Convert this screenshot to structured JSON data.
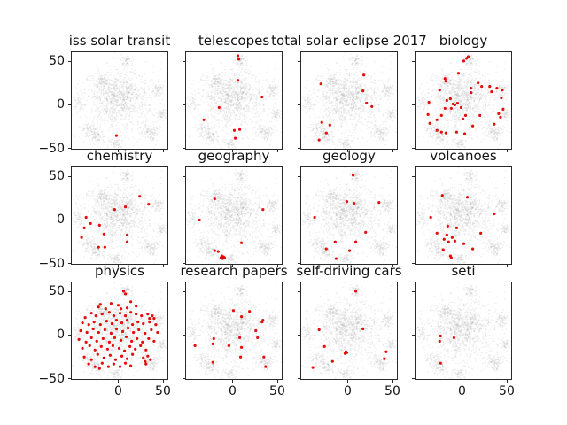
{
  "figure": {
    "background": "#ffffff"
  },
  "chart_data": {
    "type": "scatter",
    "description": "3x4 grid of subplots; each shows the same 2-D t-SNE embedding as a light gray point cloud with topic-matching documents highlighted in red",
    "axes": {
      "xlim": [
        -52,
        55
      ],
      "ylim": [
        -50,
        60
      ],
      "xticks": [
        0,
        50
      ],
      "xtick_labels": [
        "0",
        "50"
      ],
      "yticks": [
        50,
        0,
        -50
      ],
      "ytick_labels": [
        "50",
        "0",
        "−50"
      ],
      "grid": false,
      "tick_labels_left_column_only": true,
      "tick_labels_bottom_row_only": true
    },
    "colors": {
      "highlight": "#e50000",
      "cloud": "#999999",
      "spine": "#2a2a2a",
      "text": "#111111"
    },
    "background_cloud": {
      "seed": 1337,
      "point_alpha": 0.16,
      "point_radius": 0.8,
      "clusters": [
        {
          "cx": 0,
          "cy": 4,
          "sx": 20,
          "sy": 18,
          "n": 700
        },
        {
          "cx": 3,
          "cy": 10,
          "sx": 11,
          "sy": 10,
          "n": 300
        },
        {
          "cx": 9,
          "cy": 50,
          "sx": 3.5,
          "sy": 3,
          "n": 60
        },
        {
          "cx": -17,
          "cy": 27,
          "sx": 4.5,
          "sy": 4,
          "n": 90
        },
        {
          "cx": 45,
          "cy": 17,
          "sx": 4,
          "sy": 4,
          "n": 70
        },
        {
          "cx": 49,
          "cy": -11,
          "sx": 3.5,
          "sy": 3.5,
          "n": 55
        },
        {
          "cx": 37,
          "cy": -31,
          "sx": 5,
          "sy": 4.5,
          "n": 110
        },
        {
          "cx": -32,
          "cy": -28,
          "sx": 5,
          "sy": 4.5,
          "n": 90
        },
        {
          "cx": -3,
          "cy": -44,
          "sx": 4,
          "sy": 3.5,
          "n": 60
        },
        {
          "cx": -44,
          "cy": 3,
          "sx": 4,
          "sy": 5,
          "n": 50
        },
        {
          "cx": -24,
          "cy": -38,
          "sx": 4,
          "sy": 3.5,
          "n": 60
        },
        {
          "cx": 0,
          "cy": 0,
          "sx": 30,
          "sy": 26,
          "n": 260
        }
      ]
    },
    "subplots": [
      {
        "title": "iss solar transit",
        "red_points": [
          [
            -2,
            -35
          ]
        ]
      },
      {
        "title": "telescopes",
        "red_points": [
          [
            6,
            56
          ],
          [
            7,
            52
          ],
          [
            6,
            28
          ],
          [
            33,
            9
          ],
          [
            -15,
            -3
          ],
          [
            -32,
            -17
          ],
          [
            2,
            -29
          ],
          [
            8,
            -28
          ],
          [
            3,
            -38
          ]
        ]
      },
      {
        "title": "total solar eclipse 2017",
        "red_points": [
          [
            18,
            34
          ],
          [
            -30,
            24
          ],
          [
            17,
            16
          ],
          [
            21,
            2
          ],
          [
            27,
            -2
          ],
          [
            -29,
            -20
          ],
          [
            -20,
            -23
          ],
          [
            -24,
            -32
          ],
          [
            -32,
            -40
          ]
        ]
      },
      {
        "title": "biology",
        "red_points": [
          [
            5,
            53
          ],
          [
            7,
            55
          ],
          [
            2,
            50
          ],
          [
            -4,
            36
          ],
          [
            -19,
            30
          ],
          [
            -18,
            27
          ],
          [
            18,
            25
          ],
          [
            -25,
            17
          ],
          [
            10,
            19
          ],
          [
            10,
            14
          ],
          [
            22,
            21
          ],
          [
            31,
            21
          ],
          [
            39,
            19
          ],
          [
            45,
            17
          ],
          [
            33,
            15
          ],
          [
            44,
            8
          ],
          [
            -13,
            7
          ],
          [
            -17,
            5
          ],
          [
            -37,
            3
          ],
          [
            -10,
            1
          ],
          [
            -8,
            0
          ],
          [
            -5,
            2
          ],
          [
            -1,
            -3
          ],
          [
            -12,
            -4
          ],
          [
            -19,
            -4
          ],
          [
            -38,
            -11
          ],
          [
            -23,
            -12
          ],
          [
            -28,
            -17
          ],
          [
            4,
            -12
          ],
          [
            1,
            -16
          ],
          [
            20,
            -12
          ],
          [
            41,
            -10
          ],
          [
            43,
            -14
          ],
          [
            46,
            -5
          ],
          [
            -36,
            -21
          ],
          [
            12,
            -24
          ],
          [
            36,
            -22
          ],
          [
            -23,
            -31
          ],
          [
            -18,
            -32
          ],
          [
            -6,
            -31
          ],
          [
            3,
            -33
          ],
          [
            -28,
            -29
          ]
        ]
      },
      {
        "title": "chemistry",
        "red_points": [
          [
            24,
            27
          ],
          [
            34,
            18
          ],
          [
            -4,
            12
          ],
          [
            8,
            15
          ],
          [
            -36,
            3
          ],
          [
            -31,
            -4
          ],
          [
            -38,
            -9
          ],
          [
            -21,
            -6
          ],
          [
            -41,
            -20
          ],
          [
            -16,
            -16
          ],
          [
            10,
            -17
          ],
          [
            10,
            -25
          ],
          [
            -22,
            -31
          ],
          [
            -15,
            -31
          ]
        ]
      },
      {
        "title": "geography",
        "red_points": [
          [
            -20,
            24
          ],
          [
            34,
            12
          ],
          [
            -37,
            0
          ],
          [
            10,
            -26
          ],
          [
            -20,
            -35
          ],
          [
            -16,
            -36
          ],
          [
            -12,
            -41
          ],
          [
            -10,
            -42
          ],
          [
            -11,
            -44
          ],
          [
            -13,
            -43
          ],
          [
            -9,
            -43
          ]
        ]
      },
      {
        "title": "geology",
        "red_points": [
          [
            6,
            51
          ],
          [
            -1,
            21
          ],
          [
            7,
            19
          ],
          [
            35,
            20
          ],
          [
            -37,
            3
          ],
          [
            20,
            -14
          ],
          [
            9,
            -25
          ],
          [
            -14,
            -25
          ],
          [
            -24,
            -33
          ],
          [
            2,
            -35
          ],
          [
            -13,
            -44
          ]
        ]
      },
      {
        "title": "volcanoes",
        "red_points": [
          [
            -22,
            28
          ],
          [
            6,
            26
          ],
          [
            -35,
            3
          ],
          [
            36,
            7
          ],
          [
            -16,
            -7
          ],
          [
            -6,
            -9
          ],
          [
            -28,
            -15
          ],
          [
            -17,
            -17
          ],
          [
            -11,
            -20
          ],
          [
            -20,
            -22
          ],
          [
            -15,
            -25
          ],
          [
            -8,
            -24
          ],
          [
            2,
            -27
          ],
          [
            21,
            -15
          ],
          [
            12,
            -33
          ],
          [
            -21,
            -34
          ],
          [
            -13,
            -41
          ],
          [
            -12,
            -43
          ]
        ]
      },
      {
        "title": "physics",
        "red_points": [
          [
            6,
            50
          ],
          [
            8,
            47
          ],
          [
            -20,
            35
          ],
          [
            -22,
            32
          ],
          [
            -8,
            36
          ],
          [
            0,
            34
          ],
          [
            14,
            38
          ],
          [
            20,
            33
          ],
          [
            10,
            31
          ],
          [
            3,
            30
          ],
          [
            -14,
            30
          ],
          [
            -30,
            25
          ],
          [
            -25,
            22
          ],
          [
            -18,
            24
          ],
          [
            -10,
            26
          ],
          [
            -5,
            22
          ],
          [
            2,
            25
          ],
          [
            8,
            22
          ],
          [
            14,
            26
          ],
          [
            20,
            24
          ],
          [
            26,
            22
          ],
          [
            33,
            24
          ],
          [
            38,
            22
          ],
          [
            40,
            19
          ],
          [
            35,
            19
          ],
          [
            -37,
            20
          ],
          [
            -40,
            14
          ],
          [
            -33,
            12
          ],
          [
            -27,
            15
          ],
          [
            -20,
            12
          ],
          [
            -13,
            16
          ],
          [
            -7,
            13
          ],
          [
            -2,
            17
          ],
          [
            4,
            14
          ],
          [
            10,
            17
          ],
          [
            16,
            12
          ],
          [
            22,
            15
          ],
          [
            28,
            13
          ],
          [
            35,
            15
          ],
          [
            42,
            12
          ],
          [
            -42,
            5
          ],
          [
            -35,
            3
          ],
          [
            -28,
            7
          ],
          [
            -22,
            3
          ],
          [
            -15,
            6
          ],
          [
            -8,
            2
          ],
          [
            -2,
            7
          ],
          [
            5,
            4
          ],
          [
            11,
            8
          ],
          [
            17,
            3
          ],
          [
            23,
            6
          ],
          [
            30,
            2
          ],
          [
            37,
            6
          ],
          [
            44,
            3
          ],
          [
            -44,
            -5
          ],
          [
            -36,
            -8
          ],
          [
            -30,
            -3
          ],
          [
            -24,
            -7
          ],
          [
            -17,
            -4
          ],
          [
            -10,
            -8
          ],
          [
            -4,
            -3
          ],
          [
            3,
            -6
          ],
          [
            9,
            -2
          ],
          [
            15,
            -7
          ],
          [
            21,
            -4
          ],
          [
            27,
            -8
          ],
          [
            34,
            -4
          ],
          [
            40,
            -7
          ],
          [
            -40,
            -15
          ],
          [
            -32,
            -12
          ],
          [
            -26,
            -17
          ],
          [
            -19,
            -13
          ],
          [
            -12,
            -16
          ],
          [
            -6,
            -12
          ],
          [
            1,
            -15
          ],
          [
            7,
            -18
          ],
          [
            13,
            -13
          ],
          [
            19,
            -16
          ],
          [
            25,
            -12
          ],
          [
            31,
            -17
          ],
          [
            -38,
            -25
          ],
          [
            -30,
            -28
          ],
          [
            -23,
            -22
          ],
          [
            -16,
            -26
          ],
          [
            -9,
            -23
          ],
          [
            -3,
            -28
          ],
          [
            4,
            -24
          ],
          [
            10,
            -27
          ],
          [
            16,
            -22
          ],
          [
            28,
            -26
          ],
          [
            33,
            -24
          ],
          [
            36,
            -28
          ],
          [
            30,
            -30
          ],
          [
            -33,
            -33
          ],
          [
            -26,
            -36
          ],
          [
            -18,
            -32
          ],
          [
            -11,
            -36
          ],
          [
            -5,
            -33
          ],
          [
            2,
            -36
          ],
          [
            8,
            -32
          ],
          [
            14,
            -35
          ],
          [
            -21,
            -38
          ],
          [
            31,
            -33
          ]
        ]
      },
      {
        "title": "research papers",
        "red_points": [
          [
            1,
            28
          ],
          [
            19,
            27
          ],
          [
            10,
            21
          ],
          [
            34,
            17
          ],
          [
            33,
            15
          ],
          [
            26,
            5
          ],
          [
            8,
            -3
          ],
          [
            28,
            -3
          ],
          [
            -21,
            -4
          ],
          [
            -22,
            -10
          ],
          [
            -42,
            -12
          ],
          [
            -4,
            -12
          ],
          [
            10,
            -14
          ],
          [
            9,
            -25
          ],
          [
            35,
            -25
          ],
          [
            -22,
            -31
          ],
          [
            37,
            -36
          ]
        ]
      },
      {
        "title": "self-driving cars",
        "red_points": [
          [
            9,
            50
          ],
          [
            -32,
            6
          ],
          [
            17,
            7
          ],
          [
            -26,
            -13
          ],
          [
            -2,
            -19
          ],
          [
            -1,
            -20
          ],
          [
            -3,
            -21
          ],
          [
            43,
            -19
          ],
          [
            41,
            -27
          ],
          [
            -17,
            -30
          ],
          [
            -39,
            -37
          ]
        ]
      },
      {
        "title": "seti",
        "red_points": [
          [
            -24,
            -1
          ],
          [
            -25,
            -7
          ],
          [
            -9,
            -3
          ],
          [
            -24,
            -32
          ]
        ]
      }
    ]
  }
}
